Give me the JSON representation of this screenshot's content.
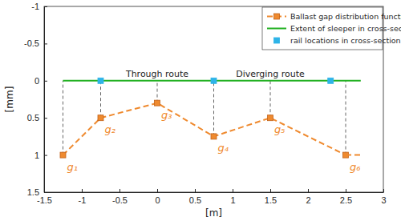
{
  "chart_data": {
    "type": "line",
    "x_label": "[m]",
    "y_label": "[mm]",
    "xlim": [
      -1.5,
      3
    ],
    "xticks": [
      -1.5,
      -1,
      -0.5,
      0,
      0.5,
      1,
      1.5,
      2,
      2.5,
      3
    ],
    "ylim": [
      1.5,
      -1
    ],
    "yticks": [
      -1,
      -0.5,
      0,
      0.5,
      1,
      1.5
    ],
    "legend": "upper-right",
    "grid": false,
    "series": [
      {
        "name": "Ballast gap distribution function",
        "type": "line",
        "color": "#ef8a2f",
        "line_style": "dashed",
        "marker": "square",
        "x": [
          -1.25,
          -0.75,
          0,
          0.75,
          1.5,
          2.5
        ],
        "values": [
          1,
          0.5,
          0.3,
          0.75,
          0.5,
          1
        ]
      },
      {
        "type": "line",
        "color": "#ef8a2f",
        "line_style": "dashed",
        "marker": "none",
        "x": [
          2.5,
          2.7
        ],
        "values": [
          1,
          1
        ]
      },
      {
        "name": "Extent of sleeper in cross-section",
        "type": "line",
        "color": "#22b022",
        "line_style": "solid",
        "marker": "none",
        "x": [
          -1.25,
          2.7
        ],
        "values": [
          0,
          0
        ]
      },
      {
        "name": "rail locations in cross-section",
        "type": "scatter",
        "color": "#2eb4e8",
        "marker": "square",
        "x": [
          -0.75,
          0.75,
          2.3
        ],
        "values": [
          0,
          0,
          0
        ]
      }
    ],
    "annotations": [
      {
        "text": "Through route",
        "x": 0,
        "y": -0.05
      },
      {
        "text": "Diverging route",
        "x": 1.5,
        "y": -0.05
      },
      {
        "text": "g₁",
        "x": -1.25,
        "y": 1
      },
      {
        "text": "g₂",
        "x": -0.75,
        "y": 0.5
      },
      {
        "text": "g₃",
        "x": 0,
        "y": 0.3
      },
      {
        "text": "g₄",
        "x": 0.75,
        "y": 0.75
      },
      {
        "text": "g₅",
        "x": 1.5,
        "y": 0.5
      },
      {
        "text": "g₆",
        "x": 2.5,
        "y": 1
      }
    ]
  }
}
